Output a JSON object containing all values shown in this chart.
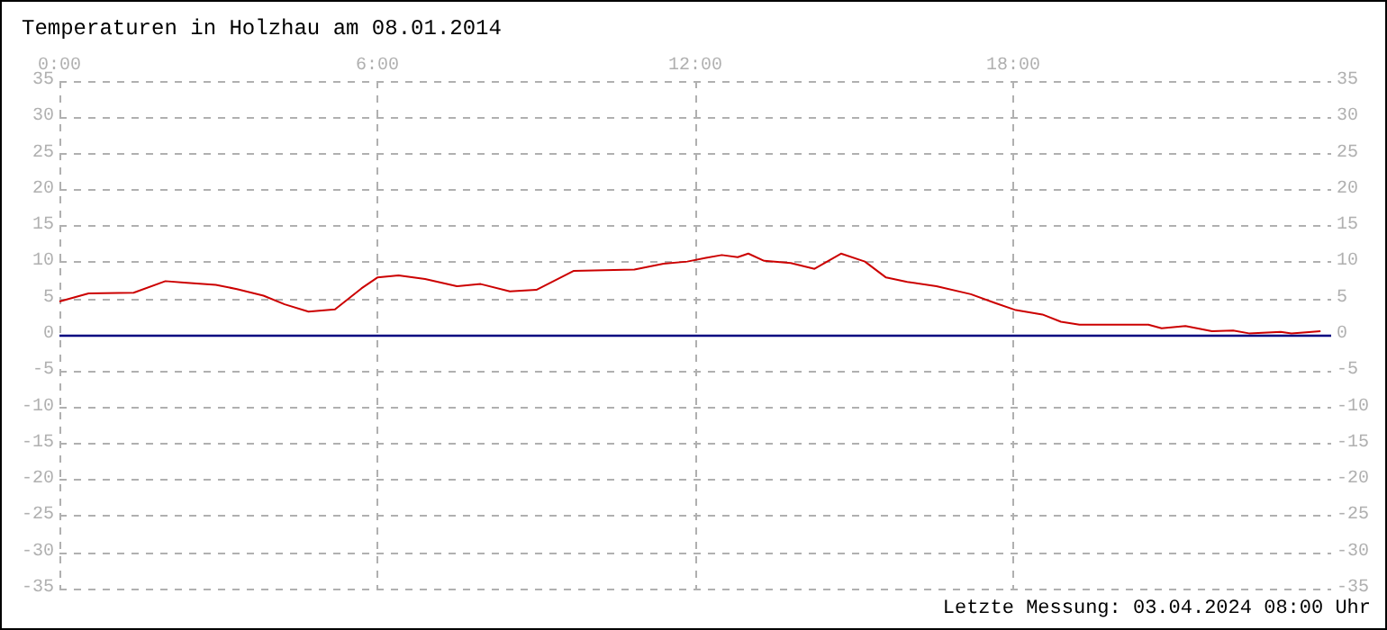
{
  "chart_data": {
    "type": "line",
    "title": "Temperaturen in Holzhau am 08.01.2014",
    "annotations": [
      "Letzte Messung: 03.04.2024 08:00 Uhr"
    ],
    "x": [
      0,
      0.55,
      1.4,
      2.0,
      2.35,
      2.95,
      3.35,
      3.85,
      4.25,
      4.7,
      5.2,
      5.7,
      6.0,
      6.4,
      6.9,
      7.5,
      7.95,
      8.5,
      9.0,
      9.7,
      10.85,
      11.4,
      11.85,
      12.2,
      12.5,
      12.8,
      13.0,
      13.3,
      13.8,
      14.25,
      14.75,
      15.2,
      15.6,
      16.0,
      16.55,
      17.2,
      17.65,
      18.05,
      18.55,
      18.9,
      19.25,
      20.55,
      20.8,
      21.25,
      21.75,
      22.15,
      22.45,
      23.05,
      23.25,
      23.8
    ],
    "series": [
      {
        "color": "#cc0000",
        "values": [
          4.6,
          5.7,
          5.8,
          7.4,
          7.2,
          6.9,
          6.3,
          5.4,
          4.2,
          3.2,
          3.5,
          6.4,
          7.9,
          8.2,
          7.7,
          6.7,
          7.0,
          6.0,
          6.2,
          8.8,
          9.0,
          9.8,
          10.1,
          10.6,
          11.0,
          10.7,
          11.2,
          10.2,
          9.9,
          9.1,
          11.2,
          10.1,
          7.9,
          7.3,
          6.7,
          5.6,
          4.4,
          3.4,
          2.8,
          1.8,
          1.4,
          1.4,
          0.9,
          1.2,
          0.5,
          0.6,
          0.2,
          0.4,
          0.2,
          0.5
        ]
      }
    ],
    "xlim": [
      0,
      24
    ],
    "xticks": [
      {
        "value": 0,
        "label": "0:00"
      },
      {
        "value": 6,
        "label": "6:00"
      },
      {
        "value": 12,
        "label": "12:00"
      },
      {
        "value": 18,
        "label": "18:00"
      }
    ],
    "ylim": [
      -35,
      35
    ],
    "yticks": [
      -35,
      -30,
      -25,
      -20,
      -15,
      -10,
      -5,
      0,
      5,
      10,
      15,
      20,
      25,
      30,
      35
    ],
    "y2lim": [
      -35,
      35
    ],
    "y2ticks": [
      -35,
      -30,
      -25,
      -20,
      -15,
      -10,
      -5,
      0,
      5,
      10,
      15,
      20,
      25,
      30,
      35
    ],
    "ref_lines": [
      {
        "axis": "y",
        "value": 0,
        "color": "#000080"
      }
    ],
    "grid": true,
    "marker": "none",
    "line_style": "solid"
  }
}
